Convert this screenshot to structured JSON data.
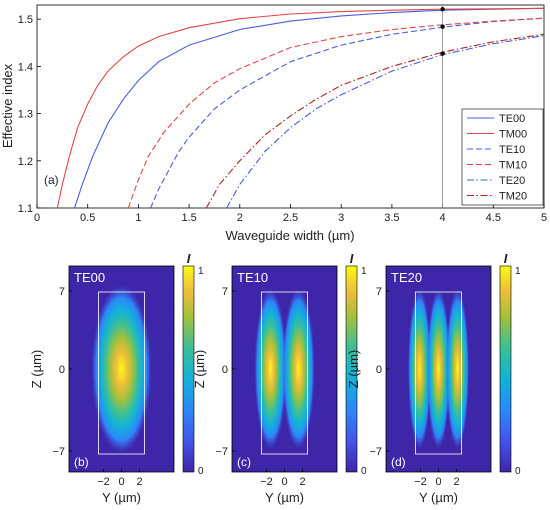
{
  "chart_data": [
    {
      "type": "line",
      "panel_label": "(a)",
      "xlabel": "Waveguide width (µm)",
      "ylabel": "Effective index",
      "xlim": [
        0,
        5
      ],
      "ylim": [
        1.1,
        1.53
      ],
      "xticks": [
        "0",
        "0.5",
        "1",
        "1.5",
        "2",
        "2.5",
        "3",
        "3.5",
        "4",
        "4.5",
        "5"
      ],
      "yticks": [
        "1.1",
        "1.2",
        "1.3",
        "1.4",
        "1.5"
      ],
      "legend_position": "lower-right",
      "grid": false,
      "vertical_marker_x": 4,
      "marker_points": [
        {
          "x": 4,
          "y": 1.521
        },
        {
          "x": 4,
          "y": 1.484
        },
        {
          "x": 4,
          "y": 1.427
        }
      ],
      "series": [
        {
          "name": "TE00",
          "color": "#4a5de0",
          "dash": "solid",
          "x": [
            0.37,
            0.45,
            0.55,
            0.7,
            0.85,
            1.0,
            1.2,
            1.5,
            2.0,
            2.5,
            3.0,
            3.5,
            4.0,
            4.5,
            5.0
          ],
          "y": [
            1.1,
            1.152,
            1.21,
            1.28,
            1.33,
            1.37,
            1.41,
            1.445,
            1.478,
            1.496,
            1.507,
            1.514,
            1.519,
            1.521,
            1.523
          ]
        },
        {
          "name": "TM00",
          "color": "#e04646",
          "dash": "solid",
          "x": [
            0.2,
            0.25,
            0.32,
            0.4,
            0.5,
            0.6,
            0.7,
            0.85,
            1.0,
            1.2,
            1.5,
            2.0,
            2.5,
            3.0,
            3.5,
            4.0,
            4.5,
            5.0
          ],
          "y": [
            1.1,
            1.15,
            1.21,
            1.27,
            1.32,
            1.36,
            1.39,
            1.42,
            1.443,
            1.463,
            1.482,
            1.501,
            1.511,
            1.516,
            1.519,
            1.521,
            1.522,
            1.523
          ]
        },
        {
          "name": "TE10",
          "color": "#4a5de0",
          "dash": "dashed",
          "x": [
            1.12,
            1.2,
            1.3,
            1.4,
            1.5,
            1.75,
            2.0,
            2.5,
            3.0,
            3.5,
            4.0,
            4.5,
            5.0
          ],
          "y": [
            1.1,
            1.14,
            1.18,
            1.22,
            1.25,
            1.31,
            1.35,
            1.41,
            1.445,
            1.468,
            1.483,
            1.495,
            1.502
          ]
        },
        {
          "name": "TM10",
          "color": "#e04646",
          "dash": "dashed",
          "x": [
            0.9,
            1.0,
            1.1,
            1.25,
            1.5,
            1.75,
            2.0,
            2.5,
            3.0,
            3.5,
            4.0,
            4.5,
            5.0
          ],
          "y": [
            1.1,
            1.16,
            1.21,
            1.26,
            1.32,
            1.365,
            1.395,
            1.44,
            1.463,
            1.478,
            1.488,
            1.496,
            1.502
          ]
        },
        {
          "name": "TE20",
          "color": "#4a5de0",
          "dash": "dashdot",
          "x": [
            1.87,
            2.0,
            2.25,
            2.5,
            2.75,
            3.0,
            3.5,
            4.0,
            4.5,
            5.0
          ],
          "y": [
            1.1,
            1.15,
            1.22,
            1.27,
            1.31,
            1.34,
            1.39,
            1.425,
            1.448,
            1.465
          ]
        },
        {
          "name": "TM20",
          "color": "#b52020",
          "dash": "dashdot",
          "x": [
            1.67,
            1.8,
            2.0,
            2.25,
            2.5,
            2.75,
            3.0,
            3.5,
            4.0,
            4.5,
            5.0
          ],
          "y": [
            1.1,
            1.15,
            1.2,
            1.255,
            1.295,
            1.33,
            1.36,
            1.4,
            1.43,
            1.452,
            1.468
          ]
        }
      ]
    },
    {
      "type": "heatmap",
      "title": "TE00",
      "panel_label": "(b)",
      "xlabel": "Y (µm)",
      "ylabel": "Z (µm)",
      "xticks": [
        "−2",
        "0",
        "2"
      ],
      "yticks": [
        "7",
        "0",
        "−7"
      ],
      "colorbar_label": "I",
      "colorbar_ticks": [
        "1",
        "0"
      ],
      "lobes": 1
    },
    {
      "type": "heatmap",
      "title": "TE10",
      "panel_label": "(c)",
      "xlabel": "Y (µm)",
      "ylabel": "Z (µm)",
      "xticks": [
        "−2",
        "0",
        "2"
      ],
      "yticks": [
        "7",
        "0",
        "−7"
      ],
      "colorbar_label": "I",
      "colorbar_ticks": [
        "1",
        "0"
      ],
      "lobes": 2
    },
    {
      "type": "heatmap",
      "title": "TE20",
      "panel_label": "(d)",
      "xlabel": "Y (µm)",
      "ylabel": "Z (µm)",
      "xticks": [
        "−2",
        "0",
        "2"
      ],
      "yticks": [
        "7",
        "0",
        "−7"
      ],
      "colorbar_label": "I",
      "colorbar_ticks": [
        "1",
        "0"
      ],
      "lobes": 3
    }
  ]
}
